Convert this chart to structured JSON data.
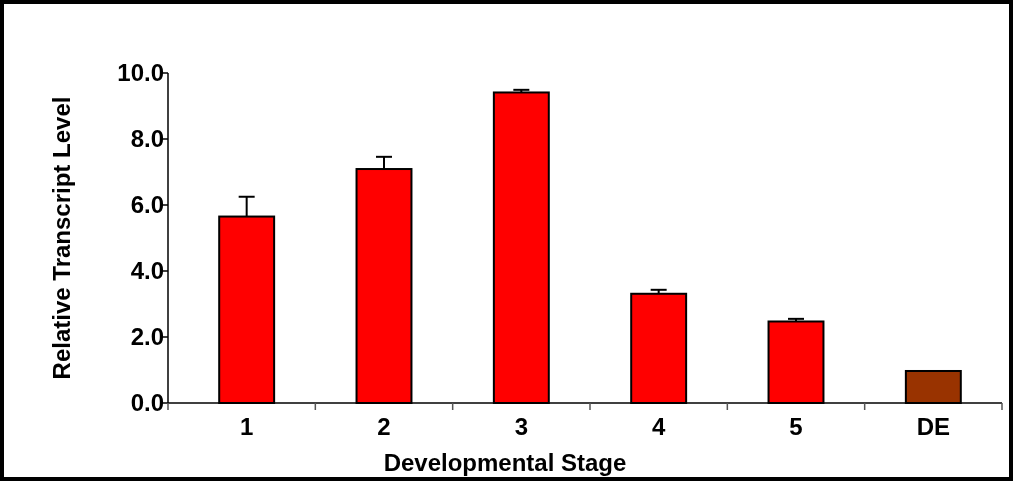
{
  "chart_data": {
    "type": "bar",
    "xlabel": "Developmental Stage",
    "ylabel": "Relative Transcript Level",
    "categories": [
      "1",
      "2",
      "3",
      "4",
      "5",
      "DE"
    ],
    "values": [
      5.65,
      7.09,
      9.41,
      3.31,
      2.47,
      0.97
    ],
    "errors": [
      0.6,
      0.37,
      0.08,
      0.12,
      0.08,
      null
    ],
    "colors": [
      "#ff0000",
      "#ff0000",
      "#ff0000",
      "#ff0000",
      "#ff0000",
      "#993300"
    ],
    "ylim": [
      0,
      10
    ],
    "yticks": [
      {
        "value": 0,
        "label": "0.0"
      },
      {
        "value": 2,
        "label": "2.0"
      },
      {
        "value": 4,
        "label": "4.0"
      },
      {
        "value": 6,
        "label": "6.0"
      },
      {
        "value": 8,
        "label": "8.0"
      },
      {
        "value": 10,
        "label": "10.0"
      }
    ]
  }
}
